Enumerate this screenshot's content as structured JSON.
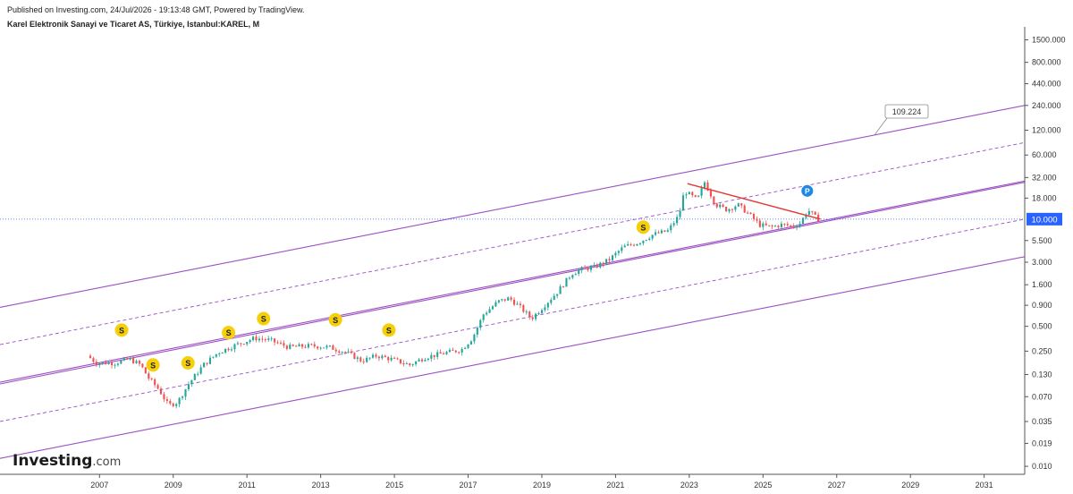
{
  "header": {
    "published": "Published on Investing.com, 24/Jul/2026 - 19:13:48 GMT, Powered by TradingView.",
    "title": "Karel Elektronik Sanayi ve Ticaret AS, Türkiye, Istanbul:KAREL, M"
  },
  "logo": {
    "brand": "Investing",
    "suffix": ".com"
  },
  "colors": {
    "up": "#26a69a",
    "down": "#ef5350",
    "channel": "#9c4fc4",
    "trend": "#e53935",
    "price_line": "#2962ff",
    "price_badge": "#2962ff",
    "dividend": "#f5d00a",
    "marker_p": "#1e88e5"
  },
  "chart_data": {
    "type": "candlestick",
    "scale": "log",
    "interval": "M",
    "x_ticks": [
      "2007",
      "2009",
      "2011",
      "2013",
      "2015",
      "2017",
      "2019",
      "2021",
      "2023",
      "2025",
      "2027",
      "2029",
      "2031"
    ],
    "y_ticks": [
      "1500.000",
      "800.000",
      "440.000",
      "240.000",
      "120.000",
      "60.000",
      "32.000",
      "18.000",
      "10.000",
      "5.500",
      "3.000",
      "1.600",
      "0.900",
      "0.500",
      "0.250",
      "0.130",
      "0.070",
      "0.035",
      "0.019",
      "0.010"
    ],
    "y_range": [
      0.008,
      2000
    ],
    "x_range": [
      2004.3,
      2032.1
    ],
    "last_price": "10.000",
    "channel_label": "109.224",
    "price_path": [
      [
        2006.75,
        0.22
      ],
      [
        2007.0,
        0.18
      ],
      [
        2007.5,
        0.18
      ],
      [
        2007.9,
        0.2
      ],
      [
        2008.2,
        0.17
      ],
      [
        2008.4,
        0.12
      ],
      [
        2008.7,
        0.085
      ],
      [
        2008.95,
        0.055
      ],
      [
        2009.2,
        0.06
      ],
      [
        2009.5,
        0.1
      ],
      [
        2009.9,
        0.17
      ],
      [
        2010.3,
        0.24
      ],
      [
        2010.8,
        0.3
      ],
      [
        2011.3,
        0.36
      ],
      [
        2011.7,
        0.34
      ],
      [
        2012.2,
        0.28
      ],
      [
        2012.8,
        0.29
      ],
      [
        2013.3,
        0.28
      ],
      [
        2013.8,
        0.24
      ],
      [
        2014.2,
        0.19
      ],
      [
        2014.6,
        0.22
      ],
      [
        2015.0,
        0.2
      ],
      [
        2015.5,
        0.17
      ],
      [
        2015.9,
        0.21
      ],
      [
        2016.5,
        0.24
      ],
      [
        2016.9,
        0.26
      ],
      [
        2017.2,
        0.36
      ],
      [
        2017.5,
        0.7
      ],
      [
        2017.9,
        1.0
      ],
      [
        2018.2,
        1.1
      ],
      [
        2018.5,
        0.85
      ],
      [
        2018.8,
        0.62
      ],
      [
        2019.1,
        0.85
      ],
      [
        2019.5,
        1.3
      ],
      [
        2019.9,
        2.2
      ],
      [
        2020.2,
        2.5
      ],
      [
        2020.5,
        2.6
      ],
      [
        2020.9,
        3.2
      ],
      [
        2021.3,
        4.6
      ],
      [
        2021.7,
        5.2
      ],
      [
        2022.1,
        6.5
      ],
      [
        2022.5,
        7.2
      ],
      [
        2022.8,
        11
      ],
      [
        2022.95,
        22
      ],
      [
        2023.3,
        17
      ],
      [
        2023.5,
        28
      ],
      [
        2023.8,
        15
      ],
      [
        2024.1,
        13
      ],
      [
        2024.4,
        15
      ],
      [
        2024.7,
        11.5
      ],
      [
        2025.0,
        8.5
      ],
      [
        2025.3,
        8.0
      ],
      [
        2025.6,
        8.6
      ],
      [
        2025.9,
        8.2
      ],
      [
        2026.1,
        9.0
      ],
      [
        2026.3,
        13
      ],
      [
        2026.56,
        10
      ]
    ],
    "channel_lines": [
      {
        "style": "solid",
        "from": [
          2004.3,
          0.85
        ],
        "to": [
          2032.1,
          240
        ]
      },
      {
        "style": "dashed",
        "from": [
          2004.3,
          0.3
        ],
        "to": [
          2032.1,
          85
        ]
      },
      {
        "style": "solid",
        "from": [
          2004.3,
          0.105
        ],
        "to": [
          2032.1,
          29
        ]
      },
      {
        "style": "solid",
        "from": [
          2004.3,
          0.1
        ],
        "to": [
          2032.1,
          28
        ]
      },
      {
        "style": "dashed",
        "from": [
          2004.3,
          0.035
        ],
        "to": [
          2032.1,
          10
        ]
      },
      {
        "style": "solid",
        "from": [
          2004.3,
          0.0125
        ],
        "to": [
          2032.1,
          3.5
        ]
      }
    ],
    "trend_line": {
      "from": [
        2022.95,
        27
      ],
      "to": [
        2026.56,
        10
      ]
    },
    "dividends": [
      [
        2007.6,
        0.45
      ],
      [
        2008.45,
        0.17
      ],
      [
        2009.4,
        0.18
      ],
      [
        2010.5,
        0.42
      ],
      [
        2011.45,
        0.62
      ],
      [
        2013.4,
        0.6
      ],
      [
        2014.85,
        0.45
      ],
      [
        2021.75,
        8.0
      ]
    ],
    "p_marker": [
      2026.2,
      22
    ]
  }
}
